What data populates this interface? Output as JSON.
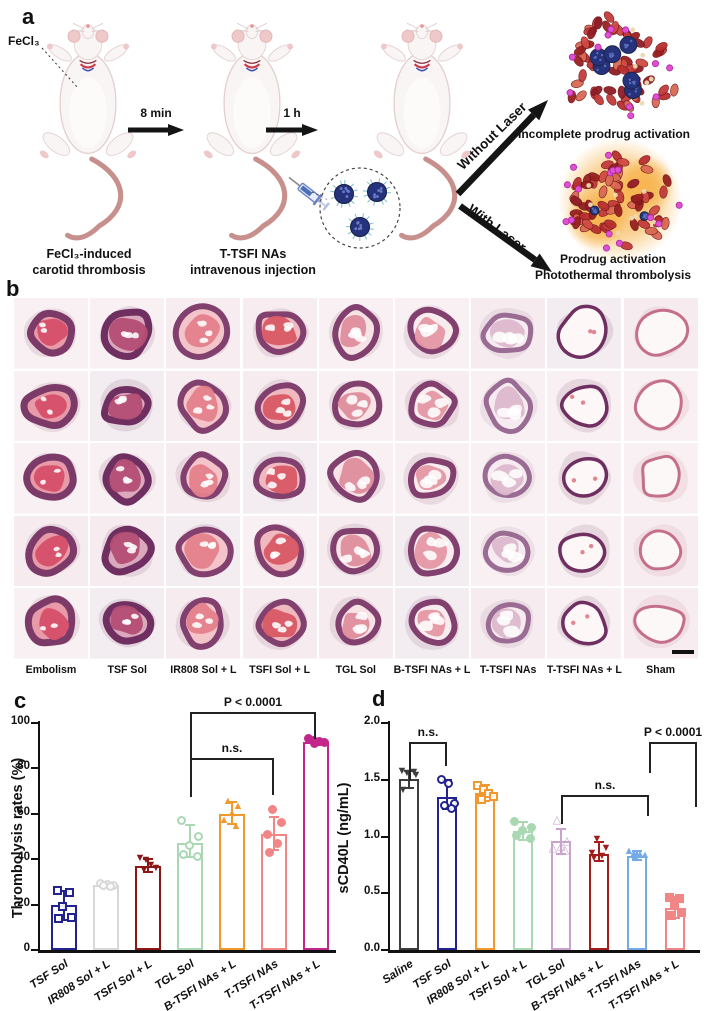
{
  "figure": {
    "panels": {
      "a": "a",
      "b": "b",
      "c": "c",
      "d": "d"
    }
  },
  "panel_a": {
    "fecl3_label": "FeCl₃",
    "arrow1_label": "8 min",
    "arrow2_label": "1 h",
    "branch_top_label": "Without Laser",
    "branch_bottom_label": "With Laser",
    "step1_caption_line1": "FeCl₃-induced",
    "step1_caption_line2": "carotid thrombosis",
    "step2_caption_line1": "T-TSFI NAs",
    "step2_caption_line2": "intravenous injection",
    "outcome_top_caption": "Incomplete prodrug activation",
    "outcome_bottom_caption_line1": "Prodrug activation",
    "outcome_bottom_caption_line2": "Photothermal thrombolysis"
  },
  "panel_b": {
    "row_count": 5,
    "has_scale_bar": true,
    "columns": [
      {
        "label": "Embolism",
        "ring": "#7c3a68",
        "fill": "#d6506a",
        "lumen": "#e89aa8",
        "ring_width": 7,
        "occlusion": 0.95
      },
      {
        "label": "TSF Sol",
        "ring": "#6f2f60",
        "fill": "#b44e74",
        "lumen": "#dba8bd",
        "ring_width": 7,
        "occlusion": 0.85
      },
      {
        "label": "IR808 Sol + L",
        "ring": "#82406f",
        "fill": "#e4808d",
        "lumen": "#f3c4ca",
        "ring_width": 6,
        "occlusion": 0.85
      },
      {
        "label": "TSFI Sol + L",
        "ring": "#82406f",
        "fill": "#d95a66",
        "lumen": "#f0b9bf",
        "ring_width": 6,
        "occlusion": 0.8
      },
      {
        "label": "TGL Sol",
        "ring": "#82406f",
        "fill": "#e08f9e",
        "lumen": "#f7e3e6",
        "ring_width": 6,
        "occlusion": 0.65
      },
      {
        "label": "B-TSFI NAs + L",
        "ring": "#82406f",
        "fill": "#e598a4",
        "lumen": "#f9ecee",
        "ring_width": 6,
        "occlusion": 0.55
      },
      {
        "label": "T-TSFI NAs",
        "ring": "#9a6b93",
        "fill": "#ddb8cc",
        "lumen": "#f6ebf0",
        "ring_width": 5,
        "occlusion": 0.5
      },
      {
        "label": "T-TSFI NAs + L",
        "ring": "#6f2f60",
        "fill": "#f6dde3",
        "lumen": "#fdf7f8",
        "ring_width": 3.5,
        "occlusion": 0.12
      },
      {
        "label": "Sham",
        "ring": "#c5708b",
        "fill": "#fbf3f4",
        "lumen": "#fdf8f8",
        "ring_width": 3,
        "occlusion": 0.04
      }
    ]
  },
  "chart_data": [
    {
      "id": "c",
      "type": "bar",
      "ylabel": "Thrombolysis rates (%)",
      "ylim": [
        0,
        100
      ],
      "yticks": [
        "0",
        "20",
        "40",
        "60",
        "80",
        "100"
      ],
      "grid": false,
      "legend_position": "none",
      "categories": [
        "TSF Sol",
        "IR808 Sol + L",
        "TSFI Sol + L",
        "TGL Sol",
        "B-TSFI NAs + L",
        "T-TSFI NAs",
        "T-TSFI NAs + L"
      ],
      "values": [
        20,
        28.5,
        37,
        47,
        60,
        51,
        91.5
      ],
      "error_low": [
        13,
        27.5,
        34.5,
        41,
        55.5,
        44,
        90.5
      ],
      "error_high": [
        26,
        29.5,
        40,
        55,
        65,
        58.5,
        93
      ],
      "points": [
        [
          26,
          25.5,
          19,
          14.5,
          14
        ],
        [
          29.5,
          29,
          28.5,
          28.5,
          28
        ],
        [
          40,
          39,
          37,
          35.5,
          35
        ],
        [
          57,
          50,
          46,
          42,
          41
        ],
        [
          65,
          63,
          60,
          57,
          54
        ],
        [
          62,
          56,
          51,
          47,
          43
        ],
        [
          93,
          92.5,
          92,
          91.5,
          91
        ]
      ],
      "colors": [
        "#23238f",
        "#d8d8d8",
        "#8c1717",
        "#a9d8b2",
        "#f2992e",
        "#f28585",
        "#c2268b"
      ],
      "markers": [
        "square-open",
        "circle-open",
        "tri-down",
        "circle-open",
        "tri-up",
        "circle",
        "circle"
      ],
      "annotations": [
        {
          "label": "P < 0.0001",
          "from": 3,
          "to": 6
        },
        {
          "label": "n.s.",
          "from": 3,
          "to": 5
        }
      ]
    },
    {
      "id": "d",
      "type": "bar",
      "ylabel": "sCD40L (ng/mL)",
      "ylim": [
        0,
        2
      ],
      "yticks": [
        "0.0",
        "0.5",
        "1.0",
        "1.5",
        "2.0"
      ],
      "grid": false,
      "legend_position": "none",
      "categories": [
        "Saline",
        "TSF Sol",
        "IR808 Sol + L",
        "TSFI Sol + L",
        "TGL Sol",
        "B-TSFI NAs + L",
        "T-TSFI NAs",
        "T-TSFI NAs + L"
      ],
      "values": [
        1.51,
        1.35,
        1.38,
        1.05,
        0.96,
        0.85,
        0.83,
        0.37
      ],
      "error_low": [
        1.43,
        1.24,
        1.31,
        0.97,
        0.85,
        0.78,
        0.79,
        0.28
      ],
      "error_high": [
        1.58,
        1.5,
        1.45,
        1.13,
        1.07,
        0.95,
        0.87,
        0.47
      ],
      "points": [
        [
          1.57,
          1.56,
          1.55,
          1.53,
          1.4
        ],
        [
          1.5,
          1.47,
          1.29,
          1.27,
          1.25
        ],
        [
          1.45,
          1.41,
          1.38,
          1.35,
          1.33
        ],
        [
          1.13,
          1.08,
          1.05,
          1.01,
          0.98
        ],
        [
          1.14,
          0.95,
          0.91,
          0.89,
          0.87
        ],
        [
          0.97,
          0.89,
          0.85,
          0.82,
          0.8
        ],
        [
          0.86,
          0.85,
          0.84,
          0.83,
          0.82
        ],
        [
          0.46,
          0.45,
          0.4,
          0.33,
          0.3
        ]
      ],
      "colors": [
        "#3d3d3d",
        "#23238f",
        "#f2992e",
        "#a9d8b2",
        "#c9a2ce",
        "#a31d1d",
        "#74aae8",
        "#f28585"
      ],
      "markers": [
        "tri-down",
        "circle-open",
        "square-open",
        "circle",
        "tri-open",
        "tri-down",
        "tri-up",
        "square"
      ],
      "annotations": [
        {
          "label": "n.s.",
          "from": 0,
          "to": 1
        },
        {
          "label": "n.s.",
          "from": 4,
          "to": 6
        },
        {
          "label": "P < 0.0001",
          "from": 6,
          "to": 7
        }
      ]
    }
  ]
}
